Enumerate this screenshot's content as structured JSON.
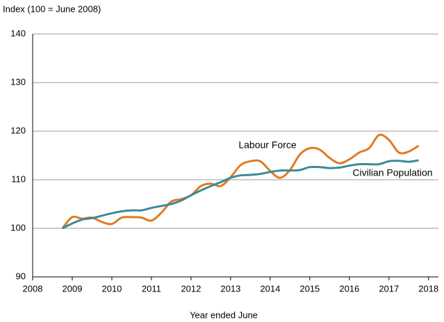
{
  "chart_data": {
    "type": "line",
    "y_axis_label": "Index (100 = June 2008)",
    "x_axis_label": "Year ended June",
    "annotations": [
      {
        "text": "Labour Force",
        "series": 0
      },
      {
        "text": "Civilian Population",
        "series": 1
      }
    ],
    "x": [
      2008.75,
      2009,
      2009.25,
      2009.5,
      2009.75,
      2010,
      2010.25,
      2010.5,
      2010.75,
      2011,
      2011.25,
      2011.5,
      2011.75,
      2012,
      2012.25,
      2012.5,
      2012.75,
      2013,
      2013.25,
      2013.5,
      2013.75,
      2014,
      2014.25,
      2014.5,
      2014.75,
      2015,
      2015.25,
      2015.5,
      2015.75,
      2016,
      2016.25,
      2016.5,
      2016.75,
      2017,
      2017.25,
      2017.5,
      2017.75
    ],
    "series": [
      {
        "name": "Labour Force",
        "color": "#e07b1f",
        "values": [
          100,
          102.3,
          102.0,
          102.2,
          101.3,
          100.9,
          102.2,
          102.3,
          102.2,
          101.6,
          103.2,
          105.5,
          106.0,
          106.8,
          108.7,
          109.2,
          108.7,
          110.5,
          113.0,
          113.8,
          113.8,
          111.8,
          110.4,
          112.0,
          115.2,
          116.5,
          116.2,
          114.5,
          113.4,
          114.2,
          115.6,
          116.5,
          119.2,
          118.2,
          115.6,
          115.8,
          117.0
        ]
      },
      {
        "name": "Civilian Population",
        "color": "#3a8a9a",
        "values": [
          100,
          101.0,
          101.8,
          102.1,
          102.6,
          103.1,
          103.5,
          103.7,
          103.7,
          104.2,
          104.6,
          105.0,
          105.7,
          106.8,
          107.8,
          108.7,
          109.5,
          110.4,
          110.9,
          111.0,
          111.2,
          111.6,
          111.9,
          111.9,
          112.0,
          112.6,
          112.6,
          112.4,
          112.5,
          112.9,
          113.2,
          113.2,
          113.2,
          113.8,
          113.9,
          113.7,
          114.0
        ]
      }
    ],
    "xlim": [
      2008,
      2018.25
    ],
    "xticks": [
      2008,
      2009,
      2010,
      2011,
      2012,
      2013,
      2014,
      2015,
      2016,
      2017,
      2018
    ],
    "ylim": [
      90,
      140
    ],
    "yticks": [
      90,
      100,
      110,
      120,
      130,
      140
    ],
    "grid": true
  }
}
